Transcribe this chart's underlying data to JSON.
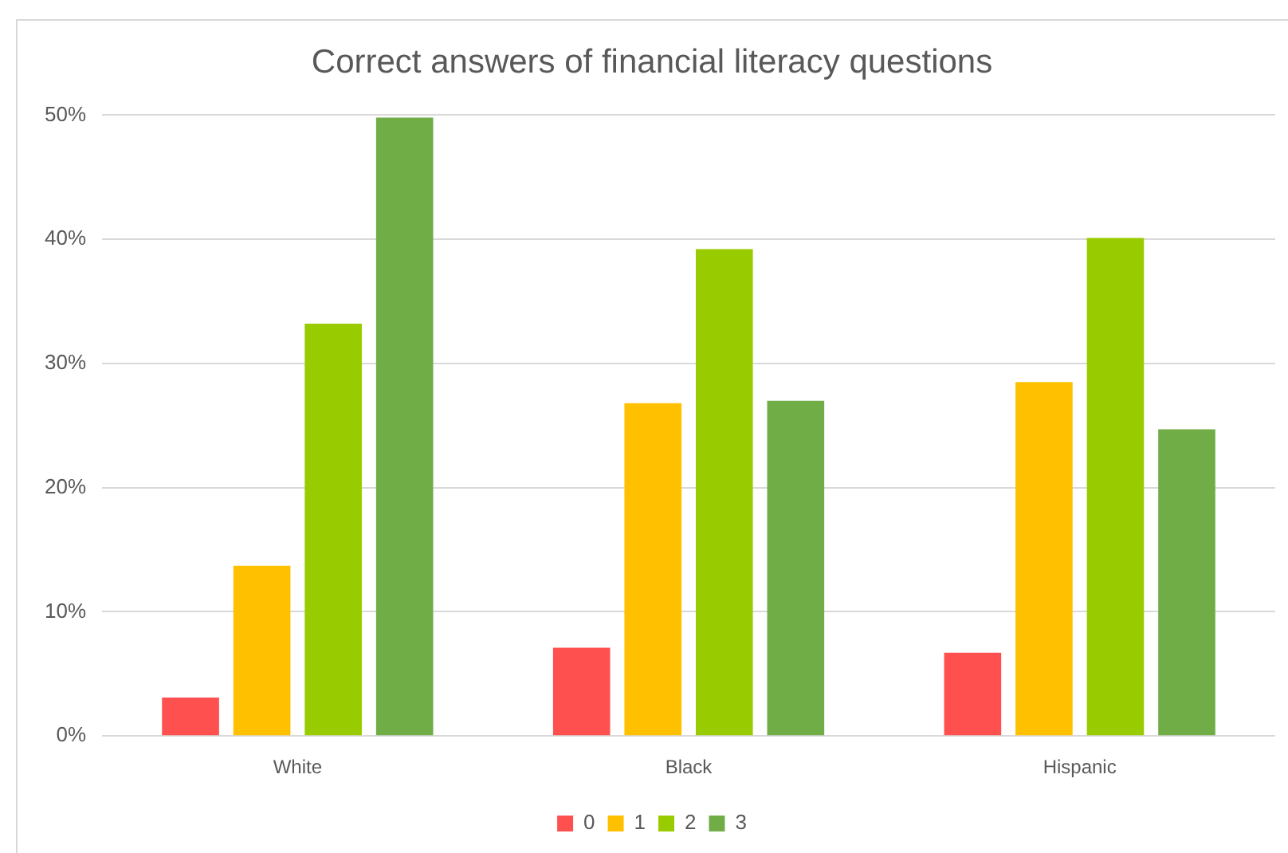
{
  "chart_data": {
    "type": "bar",
    "title": "Correct answers of financial literacy questions",
    "categories": [
      "White",
      "Black",
      "Hispanic"
    ],
    "series": [
      {
        "name": "0",
        "color": "#ff5050",
        "values": [
          3.1,
          7.1,
          6.7
        ]
      },
      {
        "name": "1",
        "color": "#ffc000",
        "values": [
          13.7,
          26.8,
          28.5
        ]
      },
      {
        "name": "2",
        "color": "#99cc00",
        "values": [
          33.2,
          39.2,
          40.1
        ]
      },
      {
        "name": "3",
        "color": "#70ad47",
        "values": [
          49.8,
          27.0,
          24.7
        ]
      }
    ],
    "ylim": [
      0,
      50
    ],
    "yticks": [
      {
        "value": 0,
        "label": "0%"
      },
      {
        "value": 10,
        "label": "10%"
      },
      {
        "value": 20,
        "label": "20%"
      },
      {
        "value": 30,
        "label": "30%"
      },
      {
        "value": 40,
        "label": "40%"
      },
      {
        "value": 50,
        "label": "50%"
      }
    ],
    "grid": "y",
    "legend": "bottom"
  }
}
